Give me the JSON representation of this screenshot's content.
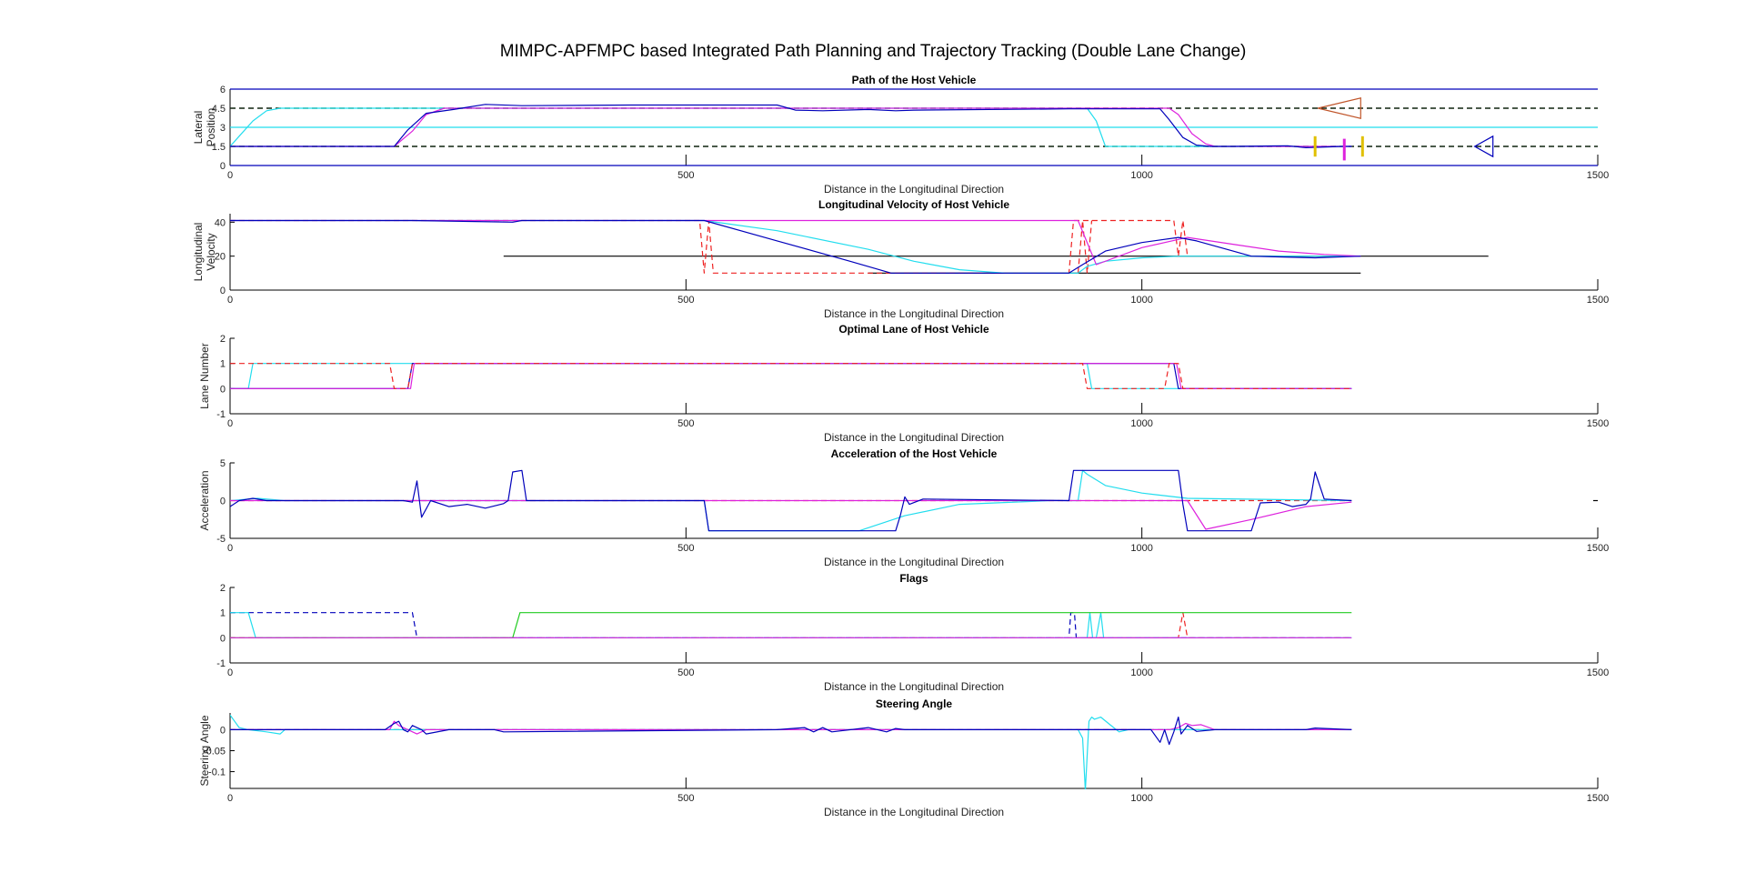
{
  "figure_title": "MIMPC-APFMPC based Integrated Path Planning and Trajectory Tracking (Double Lane Change)",
  "colors": {
    "host": "#0000bb",
    "cyan": "#22ddee",
    "magenta": "#dd22dd",
    "red_dashed": "#ee2222",
    "green": "#22cc22",
    "black": "#000000",
    "brown": "#c0552a",
    "yellow": "#e0c000"
  },
  "chart_data": [
    {
      "type": "line",
      "title": "Path of the Host Vehicle",
      "xlabel": "Distance in the Longitudinal Direction",
      "ylabel": [
        "Lateral",
        "Position"
      ],
      "xlim": [
        0,
        1500
      ],
      "ylim": [
        0,
        6
      ],
      "xticks": [
        0,
        500,
        1000,
        1500
      ],
      "yticks": [
        0,
        1.5,
        3,
        4.5,
        6
      ],
      "series": [
        {
          "color": "green",
          "dash": true,
          "x": [
            0,
            1500
          ],
          "y": [
            4.5,
            4.5
          ]
        },
        {
          "color": "green",
          "dash": true,
          "x": [
            0,
            1500
          ],
          "y": [
            1.5,
            1.5
          ]
        },
        {
          "color": "cyan",
          "x": [
            0,
            1500
          ],
          "y": [
            3,
            3
          ]
        },
        {
          "color": "host",
          "x": [
            0,
            1500
          ],
          "y": [
            6,
            6
          ]
        },
        {
          "color": "host",
          "x": [
            0,
            1500
          ],
          "y": [
            0,
            0
          ]
        },
        {
          "color": "black",
          "dash": true,
          "x": [
            0,
            1500
          ],
          "y": [
            1.5,
            1.5
          ]
        },
        {
          "color": "black",
          "dash": true,
          "x": [
            0,
            1500
          ],
          "y": [
            4.5,
            4.5
          ]
        },
        {
          "color": "cyan",
          "x": [
            0,
            10,
            25,
            40,
            55,
            940,
            950,
            960,
            1230
          ],
          "y": [
            1.5,
            2.3,
            3.5,
            4.3,
            4.5,
            4.5,
            3.5,
            1.5,
            1.5
          ]
        },
        {
          "color": "magenta",
          "x": [
            0,
            180,
            200,
            215,
            235,
            1030,
            1040,
            1055,
            1070,
            1080,
            1230
          ],
          "y": [
            1.5,
            1.5,
            2.7,
            4.0,
            4.5,
            4.5,
            4.0,
            2.5,
            1.7,
            1.5,
            1.5
          ]
        },
        {
          "color": "host",
          "x": [
            0,
            180,
            195,
            215,
            245,
            280,
            320,
            440,
            600,
            620,
            650,
            700,
            730,
            750,
            920,
            1020,
            1030,
            1045,
            1060,
            1075,
            1100,
            1160,
            1180,
            1220,
            1230
          ],
          "y": [
            1.5,
            1.5,
            2.8,
            4.1,
            4.4,
            4.8,
            4.7,
            4.75,
            4.75,
            4.35,
            4.3,
            4.4,
            4.3,
            4.35,
            4.45,
            4.45,
            3.6,
            2.2,
            1.6,
            1.5,
            1.5,
            1.55,
            1.4,
            1.5,
            1.5
          ]
        }
      ],
      "vehicles": [
        {
          "shape": "triangle",
          "color": "brown",
          "x": [
            1193,
            1240,
            1240
          ],
          "y": [
            4.5,
            5.3,
            3.7
          ]
        },
        {
          "shape": "triangle",
          "color": "host",
          "x": [
            1365,
            1385,
            1385
          ],
          "y": [
            1.5,
            2.3,
            0.7
          ]
        },
        {
          "shape": "bar",
          "color": "yellow",
          "x": 1190,
          "y": [
            0.7,
            2.3
          ]
        },
        {
          "shape": "bar",
          "color": "magenta",
          "x": 1222,
          "y": [
            0.4,
            2.1
          ]
        },
        {
          "shape": "bar",
          "color": "yellow",
          "x": 1242,
          "y": [
            0.7,
            2.3
          ]
        }
      ]
    },
    {
      "type": "line",
      "title": "Longitudinal Velocity of Host Vehicle",
      "xlabel": "Distance in the Longitudinal Direction",
      "ylabel": [
        "Longitudinal",
        "Velocity"
      ],
      "xlim": [
        0,
        1500
      ],
      "ylim": [
        0,
        45
      ],
      "xticks": [
        0,
        500,
        1000,
        1500
      ],
      "yticks": [
        0,
        20,
        40
      ],
      "series": [
        {
          "color": "black",
          "x": [
            300,
            1380
          ],
          "y": [
            20,
            20
          ]
        },
        {
          "color": "black",
          "x": [
            700,
            1240
          ],
          "y": [
            10,
            10
          ]
        },
        {
          "color": "red_dashed",
          "dash": true,
          "x": [
            0,
            515,
            520,
            525,
            530,
            920,
            925,
            1035,
            1040,
            1045,
            1050
          ],
          "y": [
            41,
            41,
            10,
            41,
            10,
            10,
            41,
            41,
            20,
            41,
            20
          ]
        },
        {
          "color": "red_dashed",
          "dash": true,
          "x": [
            930,
            935,
            940,
            945
          ],
          "y": [
            10,
            41,
            10,
            41
          ]
        },
        {
          "color": "cyan",
          "x": [
            0,
            520,
            600,
            700,
            750,
            800,
            850,
            930,
            940,
            960,
            1000,
            1040,
            1230
          ],
          "y": [
            41,
            41,
            35,
            24,
            17,
            12,
            10,
            10,
            14,
            17,
            19,
            20,
            20
          ]
        },
        {
          "color": "magenta",
          "x": [
            0,
            930,
            950,
            1000,
            1050,
            1100,
            1150,
            1200,
            1240
          ],
          "y": [
            41,
            41,
            15,
            25,
            31,
            27,
            23,
            21,
            20
          ]
        },
        {
          "color": "host",
          "x": [
            0,
            200,
            310,
            320,
            520,
            600,
            680,
            725,
            740,
            920,
            935,
            960,
            1000,
            1040,
            1060,
            1100,
            1120,
            1190,
            1240
          ],
          "y": [
            41,
            41,
            40,
            41,
            41,
            29,
            17,
            10,
            10,
            10,
            15,
            23,
            28,
            31,
            29,
            23,
            20,
            19,
            20
          ]
        }
      ]
    },
    {
      "type": "line",
      "title": "Optimal Lane of Host Vehicle",
      "xlabel": "Distance in the Longitudinal Direction",
      "ylabel": [
        "Lane Number"
      ],
      "xlim": [
        0,
        1500
      ],
      "ylim": [
        -1,
        2
      ],
      "xticks": [
        0,
        500,
        1000,
        1500
      ],
      "yticks": [
        -1,
        0,
        1,
        2
      ],
      "series": [
        {
          "color": "cyan",
          "x": [
            0,
            20,
            25,
            940,
            945,
            1230
          ],
          "y": [
            0,
            0,
            1,
            1,
            0,
            0
          ]
        },
        {
          "color": "host",
          "x": [
            0,
            195,
            200,
            1035,
            1040,
            1230
          ],
          "y": [
            0,
            0,
            1,
            1,
            0,
            0
          ]
        },
        {
          "color": "magenta",
          "x": [
            0,
            198,
            202,
            1038,
            1043,
            1230
          ],
          "y": [
            0,
            0,
            1,
            1,
            0,
            0
          ]
        },
        {
          "color": "red_dashed",
          "dash": true,
          "x": [
            0,
            175,
            180,
            195,
            200,
            935,
            940,
            1025,
            1030,
            1040,
            1045,
            1230
          ],
          "y": [
            1,
            1,
            0,
            0,
            1,
            1,
            0,
            0,
            1,
            1,
            0,
            0
          ]
        }
      ]
    },
    {
      "type": "line",
      "title": "Acceleration of the Host Vehicle",
      "xlabel": "Distance in the Longitudinal Direction",
      "ylabel": [
        "Acceleration"
      ],
      "xlim": [
        0,
        1500
      ],
      "ylim": [
        -5,
        5
      ],
      "xticks": [
        0,
        500,
        1000,
        1500
      ],
      "yticks": [
        -5,
        0,
        5
      ],
      "series": [
        {
          "color": "black",
          "x": [
            1495,
            1500
          ],
          "y": [
            0,
            0
          ]
        },
        {
          "color": "red_dashed",
          "dash": true,
          "x": [
            0,
            1230
          ],
          "y": [
            0,
            0
          ]
        },
        {
          "color": "cyan",
          "x": [
            0,
            30,
            60,
            520,
            525,
            690,
            740,
            800,
            900,
            930,
            935,
            940,
            960,
            1000,
            1050,
            1230
          ],
          "y": [
            0,
            0.3,
            0,
            0,
            -4,
            -4,
            -2,
            -0.5,
            0,
            0,
            4,
            3.5,
            2.0,
            1.0,
            0.3,
            0
          ]
        },
        {
          "color": "magenta",
          "x": [
            0,
            930,
            1040,
            1050,
            1070,
            1120,
            1180,
            1230
          ],
          "y": [
            0,
            0,
            0,
            0,
            -3.8,
            -2.5,
            -0.8,
            -0.2
          ]
        },
        {
          "color": "host",
          "x": [
            0,
            10,
            25,
            40,
            50,
            190,
            200,
            205,
            210,
            220,
            240,
            260,
            280,
            300,
            305,
            310,
            320,
            325,
            340,
            520,
            525,
            730,
            735,
            740,
            745,
            760,
            920,
            925,
            1035,
            1040,
            1045,
            1050,
            1120,
            1130,
            1150,
            1165,
            1180,
            1185,
            1190,
            1200,
            1230
          ],
          "y": [
            -0.8,
            0,
            0.3,
            0,
            0,
            0,
            -0.2,
            2.6,
            -2.2,
            0,
            -0.8,
            -0.5,
            -1.0,
            -0.4,
            0,
            3.8,
            4.0,
            0,
            0,
            0,
            -4,
            -4,
            -2.0,
            0.5,
            -0.5,
            0.2,
            0,
            4,
            4,
            4,
            -0.5,
            -4,
            -4,
            -0.3,
            -0.2,
            -0.8,
            -0.5,
            0.2,
            3.8,
            0.2,
            0
          ]
        }
      ]
    },
    {
      "type": "line",
      "title": "Flags",
      "xlabel": "Distance in the Longitudinal Direction",
      "ylabel": [],
      "xlim": [
        0,
        1500
      ],
      "ylim": [
        -1,
        2
      ],
      "xticks": [
        0,
        500,
        1000,
        1500
      ],
      "yticks": [
        -1,
        0,
        1,
        2
      ],
      "series": [
        {
          "color": "host",
          "dash": true,
          "x": [
            0,
            200,
            205,
            920,
            922,
            926,
            928,
            1230
          ],
          "y": [
            1,
            1,
            0,
            0,
            1,
            1,
            0,
            0
          ]
        },
        {
          "color": "red_dashed",
          "dash": true,
          "x": [
            0,
            200,
            205,
            1040,
            1045,
            1050,
            1230
          ],
          "y": [
            0,
            0,
            0,
            0,
            1,
            0,
            0
          ]
        },
        {
          "color": "cyan",
          "x": [
            0,
            20,
            28,
            940,
            943,
            946,
            950,
            955,
            958,
            1230
          ],
          "y": [
            1,
            1,
            0,
            0,
            1,
            0,
            0,
            1,
            0,
            0
          ]
        },
        {
          "color": "green",
          "x": [
            0,
            310,
            318,
            1230
          ],
          "y": [
            0,
            0,
            1,
            1
          ]
        },
        {
          "color": "magenta",
          "x": [
            0,
            1230
          ],
          "y": [
            0,
            0
          ]
        }
      ]
    },
    {
      "type": "line",
      "title": "Steering Angle",
      "xlabel": "Distance in the Longitudinal Direction",
      "ylabel": [
        "Steering Angle"
      ],
      "xlim": [
        0,
        1500
      ],
      "ylim": [
        -0.14,
        0.04
      ],
      "xticks": [
        0,
        500,
        1000,
        1500
      ],
      "yticks": [
        -0.1,
        -0.05,
        0
      ],
      "series": [
        {
          "color": "red_dashed",
          "dash": true,
          "x": [
            0,
            1230
          ],
          "y": [
            0,
            0
          ]
        },
        {
          "color": "cyan",
          "x": [
            0,
            5,
            10,
            20,
            40,
            55,
            60,
            920,
            930,
            935,
            938,
            942,
            945,
            948,
            955,
            965,
            975,
            985,
            1000,
            1230
          ],
          "y": [
            0.035,
            0.02,
            0.005,
            0,
            -0.005,
            -0.01,
            0,
            0,
            0,
            -0.02,
            -0.145,
            0.02,
            0.03,
            0.025,
            0.03,
            0.012,
            -0.005,
            0,
            0,
            0
          ]
        },
        {
          "color": "magenta",
          "x": [
            0,
            175,
            180,
            185,
            195,
            205,
            215,
            1030,
            1040,
            1048,
            1055,
            1065,
            1080,
            1230
          ],
          "y": [
            0,
            0,
            0.02,
            0.01,
            0,
            -0.01,
            0,
            0,
            0.005,
            0.015,
            0.01,
            0.012,
            0,
            0
          ]
        },
        {
          "color": "host",
          "x": [
            0,
            170,
            180,
            185,
            190,
            195,
            200,
            210,
            215,
            240,
            290,
            300,
            600,
            630,
            640,
            650,
            660,
            700,
            720,
            730,
            740,
            750,
            1010,
            1020,
            1025,
            1030,
            1035,
            1040,
            1043,
            1050,
            1060,
            1080,
            1180,
            1190,
            1230
          ],
          "y": [
            0,
            0,
            0.015,
            0.02,
            0,
            -0.005,
            0.01,
            0,
            -0.01,
            0,
            0,
            -0.005,
            0,
            0.005,
            -0.005,
            0.005,
            -0.005,
            0.005,
            -0.005,
            0.003,
            0,
            0,
            0,
            -0.03,
            0,
            -0.035,
            -0.005,
            0.03,
            -0.01,
            0.01,
            -0.004,
            0,
            0,
            0.004,
            0
          ]
        }
      ]
    }
  ]
}
